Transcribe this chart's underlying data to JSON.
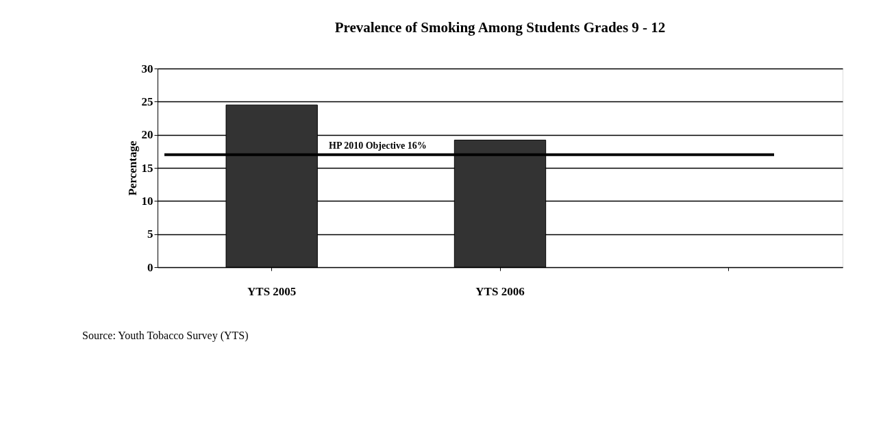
{
  "chart_data": {
    "type": "bar",
    "title": "Prevalence of Smoking Among Students Grades 9 - 12",
    "ylabel": "Percentage",
    "categories": [
      "YTS 2005",
      "YTS 2006",
      null
    ],
    "values": [
      24.5,
      19.2,
      null
    ],
    "color": "#333333",
    "ylim": [
      0,
      30
    ],
    "yticks": [
      0,
      5,
      10,
      15,
      20,
      25,
      30
    ],
    "grid": "y",
    "ref_lines": [
      {
        "axis": "y",
        "value": 17,
        "label": "HP 2010 Objective 16%",
        "color": "#000000"
      }
    ],
    "annotations": [
      "Source: Youth Tobacco Survey (YTS)"
    ]
  }
}
